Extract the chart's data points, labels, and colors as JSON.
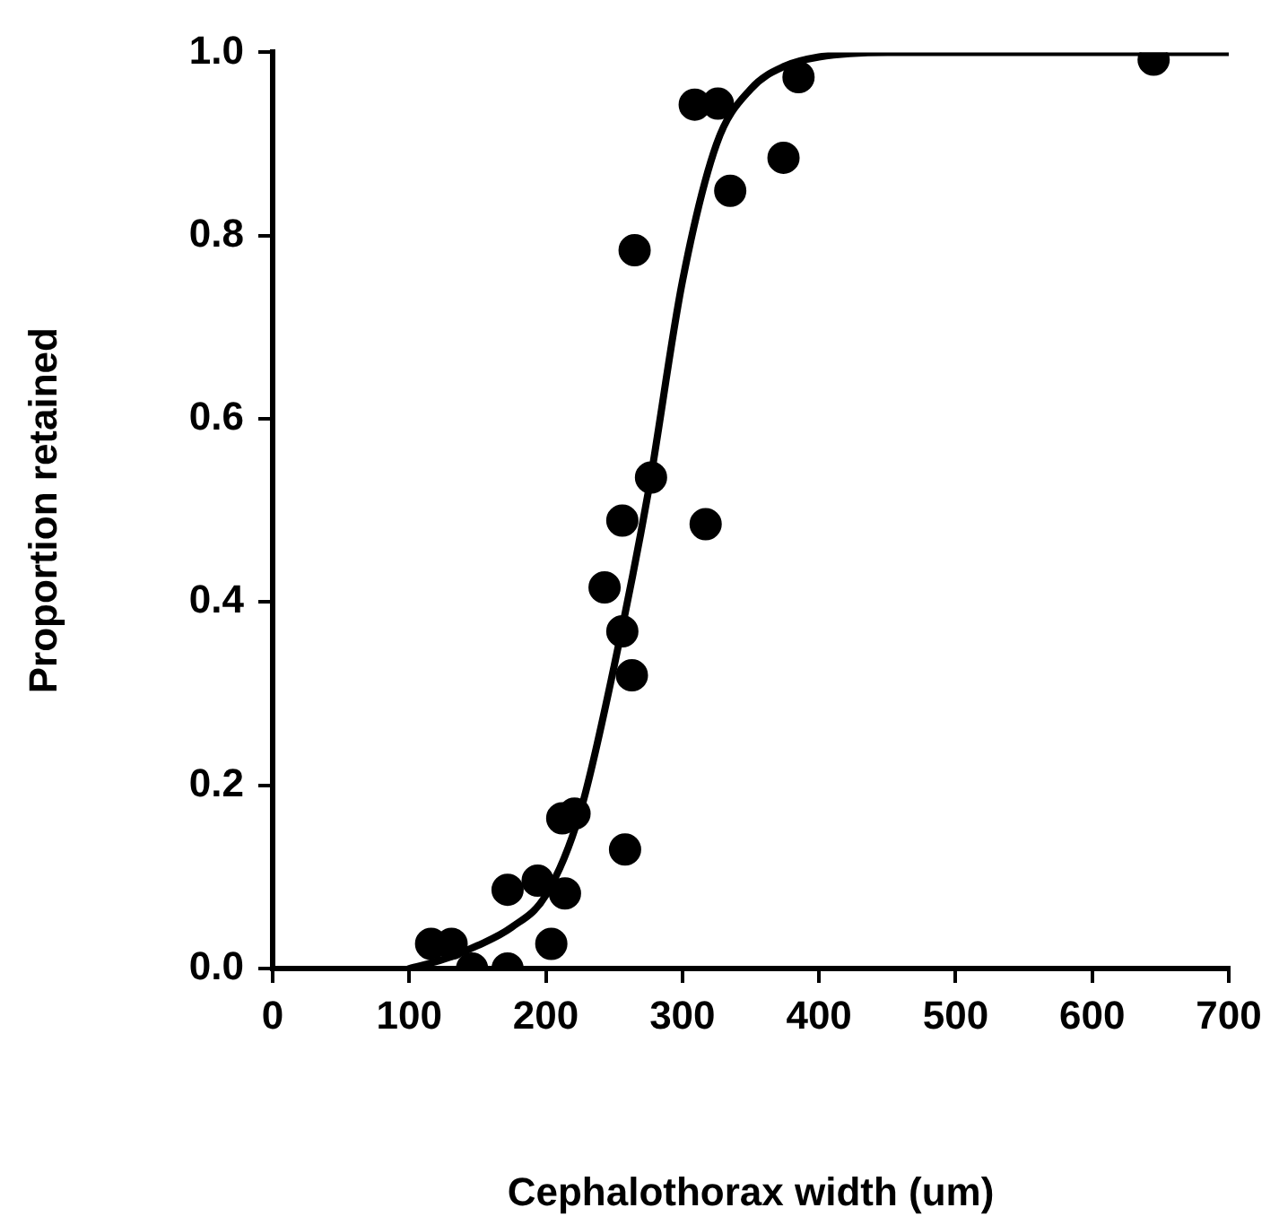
{
  "chart_data": {
    "type": "scatter",
    "xlabel": "Cephalothorax width (um)",
    "ylabel": "Proportion retained",
    "xlim": [
      0,
      700
    ],
    "xticks": [
      0,
      100,
      200,
      300,
      400,
      500,
      600,
      700
    ],
    "ylim": [
      0,
      1
    ],
    "yticks": [
      {
        "value": 0,
        "label": "0.0"
      },
      {
        "value": 0.2,
        "label": "0.2"
      },
      {
        "value": 0.4,
        "label": "0.4"
      },
      {
        "value": 0.6,
        "label": "0.6"
      },
      {
        "value": 0.8,
        "label": "0.8"
      },
      {
        "value": 1,
        "label": "1.0"
      }
    ],
    "grid": false,
    "legend": false,
    "line_style": "solid",
    "series": [
      {
        "marker": "circle",
        "color": "#000000",
        "x": [
          116,
          131,
          146,
          172,
          204,
          172,
          194,
          214,
          212,
          221,
          258,
          277,
          256,
          317,
          243,
          256,
          263,
          265,
          309,
          326,
          335,
          374,
          385,
          645
        ],
        "values": [
          0.027,
          0.027,
          0,
          0,
          0.027,
          0.086,
          0.096,
          0.082,
          0.164,
          0.169,
          0.13,
          0.536,
          0.489,
          0.485,
          0.416,
          0.368,
          0.32,
          0.784,
          0.943,
          0.944,
          0.849,
          0.885,
          0.973,
          0.992
        ]
      },
      {
        "type": "line",
        "marker": "none",
        "color": "#000000",
        "x": [
          100,
          125,
          150,
          175,
          200,
          225,
          250,
          275,
          300,
          325,
          350,
          375,
          400,
          450,
          500,
          600,
          700
        ],
        "values": [
          0,
          0.01,
          0.025,
          0.045,
          0.08,
          0.17,
          0.33,
          0.52,
          0.75,
          0.9,
          0.96,
          0.985,
          0.995,
          1,
          1,
          1,
          1
        ]
      }
    ]
  }
}
